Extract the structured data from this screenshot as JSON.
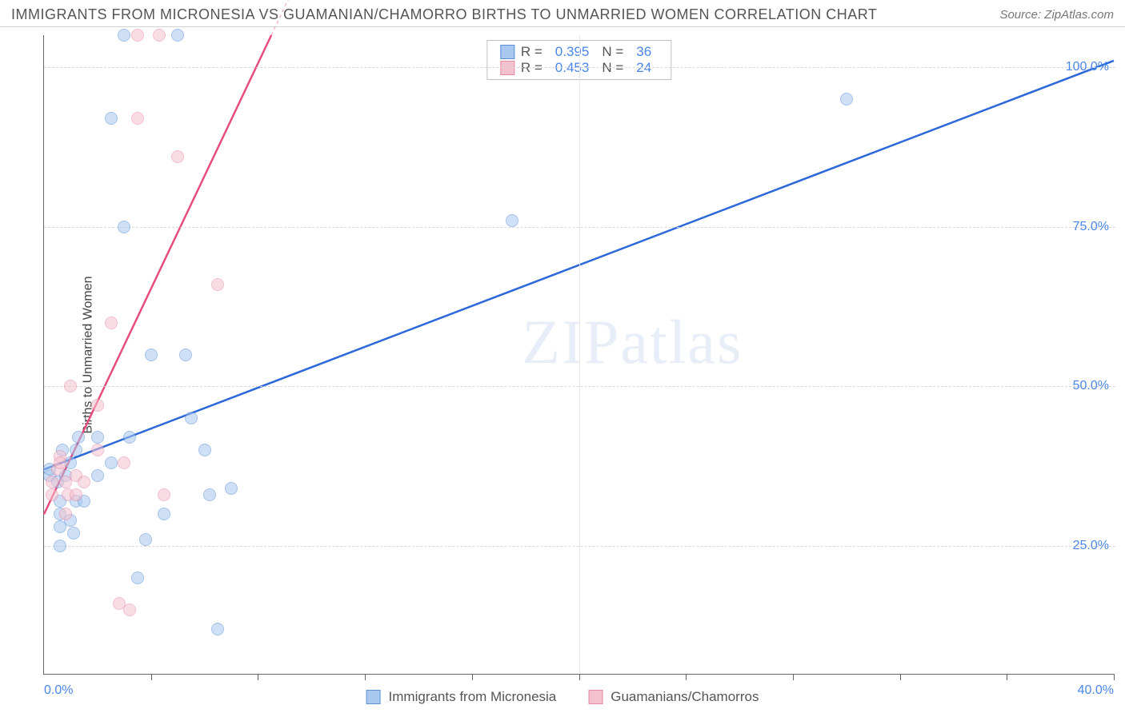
{
  "header": {
    "title": "IMMIGRANTS FROM MICRONESIA VS GUAMANIAN/CHAMORRO BIRTHS TO UNMARRIED WOMEN CORRELATION CHART",
    "source": "Source: ZipAtlas.com"
  },
  "ylabel": "Births to Unmarried Women",
  "watermark": "ZIPatlas",
  "chart": {
    "type": "scatter",
    "xlim": [
      0,
      40
    ],
    "ylim": [
      5,
      105
    ],
    "x_ticks": [
      0,
      20,
      40
    ],
    "x_tick_labels": [
      "0.0%",
      "",
      "40.0%"
    ],
    "x_minor_ticks_every": 4,
    "y_ticks": [
      25,
      50,
      75,
      100
    ],
    "y_tick_labels": [
      "25.0%",
      "50.0%",
      "75.0%",
      "100.0%"
    ],
    "grid_color": "#d8d8d8",
    "background": "#ffffff",
    "tick_label_color": "#4a86e8",
    "axis_color": "#666666",
    "marker_radius": 8,
    "marker_opacity": 0.55,
    "series": [
      {
        "name": "Immigrants from Micronesia",
        "key": "micronesia",
        "fill": "#a8c8f0",
        "stroke": "#5a8fd6",
        "line_color": "#2b68d8",
        "r_value": "0.395",
        "n_value": "36",
        "regression": {
          "x1": 0,
          "y1": 37,
          "x2": 40,
          "y2": 101
        },
        "points": [
          [
            0.2,
            36
          ],
          [
            0.2,
            37
          ],
          [
            0.5,
            35
          ],
          [
            0.7,
            40
          ],
          [
            0.6,
            32
          ],
          [
            0.6,
            28
          ],
          [
            0.6,
            30
          ],
          [
            0.8,
            36
          ],
          [
            0.6,
            25
          ],
          [
            1.0,
            38
          ],
          [
            1.2,
            40
          ],
          [
            1.3,
            42
          ],
          [
            1.2,
            32
          ],
          [
            1.0,
            29
          ],
          [
            1.1,
            27
          ],
          [
            1.5,
            32
          ],
          [
            2.0,
            36
          ],
          [
            2.0,
            42
          ],
          [
            2.5,
            38
          ],
          [
            2.5,
            92
          ],
          [
            3.0,
            105
          ],
          [
            3.0,
            75
          ],
          [
            3.2,
            42
          ],
          [
            3.5,
            20
          ],
          [
            3.8,
            26
          ],
          [
            4.0,
            55
          ],
          [
            4.5,
            30
          ],
          [
            5.0,
            105
          ],
          [
            5.3,
            55
          ],
          [
            5.5,
            45
          ],
          [
            6.0,
            40
          ],
          [
            6.2,
            33
          ],
          [
            6.5,
            12
          ],
          [
            7.0,
            34
          ],
          [
            17.5,
            76
          ],
          [
            30.0,
            95
          ]
        ]
      },
      {
        "name": "Guamanians/Chamorros",
        "key": "guamanians",
        "fill": "#f4c2cf",
        "stroke": "#e889a3",
        "line_color": "#e64d7a",
        "r_value": "0.453",
        "n_value": "24",
        "regression": {
          "x1": 0,
          "y1": 30,
          "x2": 8.5,
          "y2": 105
        },
        "regression_dashed_to_x": 11,
        "points": [
          [
            0.3,
            35
          ],
          [
            0.3,
            33
          ],
          [
            0.5,
            37
          ],
          [
            0.6,
            39
          ],
          [
            0.6,
            38
          ],
          [
            0.8,
            35
          ],
          [
            0.8,
            30
          ],
          [
            0.9,
            33
          ],
          [
            1.0,
            50
          ],
          [
            1.2,
            36
          ],
          [
            1.2,
            33
          ],
          [
            1.5,
            35
          ],
          [
            2.0,
            40
          ],
          [
            2.0,
            47
          ],
          [
            2.5,
            60
          ],
          [
            2.8,
            16
          ],
          [
            3.0,
            38
          ],
          [
            3.2,
            15
          ],
          [
            3.5,
            92
          ],
          [
            3.5,
            105
          ],
          [
            4.3,
            105
          ],
          [
            4.5,
            33
          ],
          [
            5.0,
            86
          ],
          [
            6.5,
            66
          ]
        ]
      }
    ]
  },
  "legend_top": {
    "r_label": "R =",
    "n_label": "N ="
  },
  "legend_bottom": {
    "items": [
      "Immigrants from Micronesia",
      "Guamanians/Chamorros"
    ]
  }
}
